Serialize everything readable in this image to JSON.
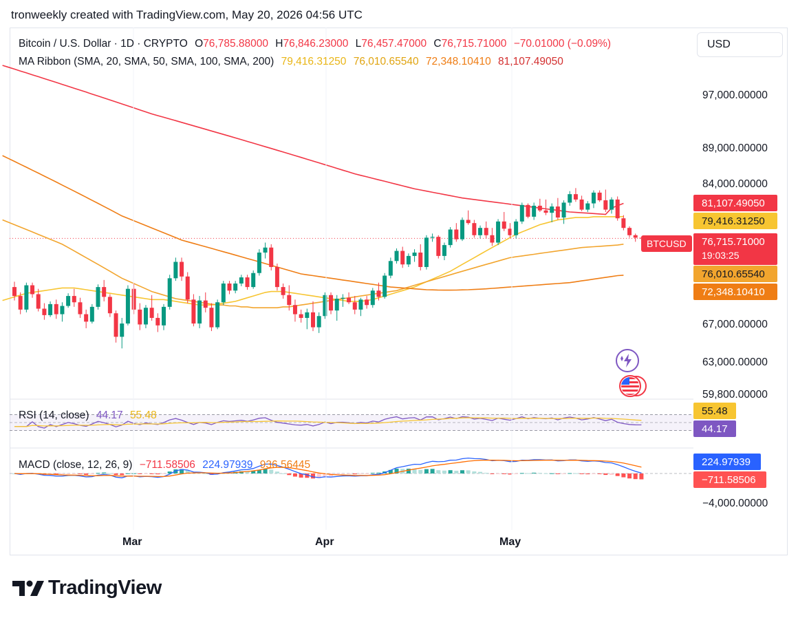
{
  "header": {
    "title": "tronweekly created with TradingView.com, May 20, 2026 04:56 UTC"
  },
  "currency": "USD",
  "legend": {
    "symbol": "Bitcoin / U.S. Dollar · 1D · CRYPTO",
    "open_label": "O",
    "open": "76,785.88000",
    "high_label": "H",
    "high": "76,846.23000",
    "low_label": "L",
    "low": "76,457.47000",
    "close_label": "C",
    "close": "76,715.71000",
    "change": "−70.01000 (−0.09%)",
    "ma_title": "MA Ribbon (SMA, 20, SMA, 50, SMA, 100, SMA, 200)",
    "ma20": "79,416.31250",
    "ma50": "76,010.65540",
    "ma100": "72,348.10410",
    "ma200": "81,107.49050"
  },
  "price_axis": [
    "97,000.00000",
    "89,000.00000",
    "84,000.00000",
    "67,000.00000",
    "63,000.00000",
    "59,800.00000"
  ],
  "price_tags": {
    "ma200": "81,107.49050",
    "ma20": "79,416.31250",
    "last": "76,715.71000",
    "countdown": "19:03:25",
    "ma50": "76,010.65540",
    "ma100": "72,348.10410",
    "symbol": "BTCUSD"
  },
  "rsi": {
    "title": "RSI (14, close)",
    "value": "44.17",
    "ma": "55.48"
  },
  "macd": {
    "title": "MACD (close, 12, 26, 9)",
    "histogram": "−711.58506",
    "macd": "224.97939",
    "signal": "936.56445",
    "axis_label": "−4,000.00000"
  },
  "time_axis": [
    "Mar",
    "Apr",
    "May"
  ],
  "brand": {
    "name": "TradingView"
  },
  "colors": {
    "up": "#089981",
    "down": "#f23645",
    "ma20": "#f7c531",
    "ma50": "#f2a52e",
    "ma100": "#ef7d14",
    "ma200": "#f23645",
    "rsi": "#7e57c2",
    "macd": "#2962ff",
    "signal": "#ff6d00"
  },
  "chart_data": {
    "type": "candlestick",
    "title": "Bitcoin / U.S. Dollar · 1D · CRYPTO",
    "xlabel": "",
    "ylabel": "",
    "x_ticks": [
      "Mar",
      "Apr",
      "May"
    ],
    "ylim": [
      59800,
      101000
    ],
    "log_scale": true,
    "grid": false,
    "legend": "top-left",
    "candles": [
      [
        71000,
        71600,
        69500,
        70000
      ],
      [
        70000,
        70400,
        68000,
        68500
      ],
      [
        68500,
        71500,
        68200,
        71200
      ],
      [
        71200,
        71500,
        69800,
        70200
      ],
      [
        70200,
        70800,
        68300,
        68600
      ],
      [
        68600,
        69200,
        67400,
        67900
      ],
      [
        67900,
        69400,
        67700,
        69100
      ],
      [
        69100,
        69600,
        67500,
        68000
      ],
      [
        68000,
        69300,
        67200,
        68900
      ],
      [
        68900,
        70300,
        68700,
        70000
      ],
      [
        70000,
        70800,
        68800,
        69300
      ],
      [
        69300,
        69800,
        67600,
        68000
      ],
      [
        68000,
        68500,
        66500,
        67200
      ],
      [
        67200,
        69100,
        67000,
        68800
      ],
      [
        68800,
        71300,
        68500,
        71000
      ],
      [
        71000,
        71800,
        69400,
        69900
      ],
      [
        69900,
        70200,
        67700,
        68100
      ],
      [
        68100,
        68400,
        65000,
        65600
      ],
      [
        65600,
        67600,
        64400,
        67000
      ],
      [
        67000,
        71200,
        66800,
        70800
      ],
      [
        70800,
        71400,
        68000,
        68500
      ],
      [
        68500,
        69200,
        66300,
        66900
      ],
      [
        66900,
        69000,
        66500,
        68700
      ],
      [
        68700,
        70100,
        67300,
        67600
      ],
      [
        67600,
        68100,
        66100,
        66800
      ],
      [
        66800,
        69100,
        66300,
        68800
      ],
      [
        68800,
        72400,
        68500,
        72000
      ],
      [
        72000,
        74400,
        71700,
        73900
      ],
      [
        73900,
        74400,
        71700,
        72200
      ],
      [
        72200,
        72700,
        69200,
        69600
      ],
      [
        69600,
        70200,
        66700,
        67000
      ],
      [
        67000,
        70000,
        66500,
        69500
      ],
      [
        69500,
        70400,
        68200,
        68700
      ],
      [
        68700,
        69200,
        66200,
        66600
      ],
      [
        66600,
        69600,
        66400,
        69300
      ],
      [
        69300,
        71700,
        69000,
        71400
      ],
      [
        71400,
        71700,
        70200,
        70600
      ],
      [
        70600,
        71700,
        70300,
        71400
      ],
      [
        71400,
        72400,
        71100,
        72100
      ],
      [
        72100,
        72400,
        70700,
        71000
      ],
      [
        71000,
        72900,
        70800,
        72600
      ],
      [
        72600,
        75400,
        72300,
        75000
      ],
      [
        75000,
        76200,
        74300,
        75600
      ],
      [
        75600,
        76000,
        72900,
        73300
      ],
      [
        73300,
        73700,
        70600,
        71000
      ],
      [
        71000,
        71400,
        69700,
        70100
      ],
      [
        70100,
        71200,
        68400,
        69000
      ],
      [
        69000,
        69600,
        67200,
        68000
      ],
      [
        68000,
        68500,
        67100,
        67600
      ],
      [
        67600,
        68600,
        66400,
        68200
      ],
      [
        68200,
        69400,
        66200,
        66600
      ],
      [
        66600,
        68200,
        66000,
        67800
      ],
      [
        67800,
        70400,
        67500,
        70100
      ],
      [
        70100,
        70400,
        68000,
        68400
      ],
      [
        68400,
        70100,
        67300,
        69700
      ],
      [
        69700,
        70200,
        68800,
        69800
      ],
      [
        69800,
        70400,
        69100,
        69300
      ],
      [
        69300,
        70000,
        68000,
        68500
      ],
      [
        68500,
        69800,
        67800,
        69600
      ],
      [
        69600,
        70000,
        68600,
        69000
      ],
      [
        69000,
        70900,
        68700,
        70600
      ],
      [
        70600,
        71500,
        69500,
        69900
      ],
      [
        69900,
        72600,
        69700,
        72300
      ],
      [
        72300,
        74400,
        72000,
        74000
      ],
      [
        74000,
        75500,
        73700,
        75200
      ],
      [
        75200,
        75700,
        73200,
        73600
      ],
      [
        73600,
        74900,
        73300,
        74600
      ],
      [
        74600,
        75400,
        73900,
        75000
      ],
      [
        75000,
        76000,
        72900,
        73300
      ],
      [
        73300,
        77100,
        73000,
        76800
      ],
      [
        76800,
        77300,
        76300,
        76900
      ],
      [
        76900,
        77100,
        74300,
        74600
      ],
      [
        74600,
        76200,
        74100,
        75900
      ],
      [
        75900,
        78100,
        75600,
        77800
      ],
      [
        77800,
        78600,
        76300,
        76600
      ],
      [
        76600,
        79300,
        76400,
        79000
      ],
      [
        79000,
        80200,
        78400,
        78600
      ],
      [
        78600,
        79000,
        76800,
        77100
      ],
      [
        77100,
        78300,
        76700,
        78000
      ],
      [
        78000,
        78800,
        76700,
        77100
      ],
      [
        77100,
        78000,
        75800,
        76200
      ],
      [
        76200,
        79100,
        75900,
        78800
      ],
      [
        78800,
        80000,
        77600,
        77900
      ],
      [
        77900,
        78600,
        76800,
        77100
      ],
      [
        77100,
        79100,
        76700,
        78800
      ],
      [
        78800,
        81200,
        78500,
        80900
      ],
      [
        80900,
        81100,
        79200,
        79400
      ],
      [
        79400,
        81200,
        79000,
        80800
      ],
      [
        80800,
        81700,
        80000,
        80200
      ],
      [
        80200,
        81600,
        79600,
        79900
      ],
      [
        79900,
        81100,
        78700,
        80700
      ],
      [
        80700,
        81800,
        79000,
        79300
      ],
      [
        79300,
        81500,
        78500,
        81200
      ],
      [
        81200,
        82700,
        80800,
        82300
      ],
      [
        82300,
        83100,
        81300,
        81600
      ],
      [
        81600,
        82100,
        80100,
        80300
      ],
      [
        80300,
        81400,
        80000,
        81100
      ],
      [
        81100,
        82800,
        80500,
        82500
      ],
      [
        82500,
        82800,
        81300,
        81500
      ],
      [
        81500,
        82900,
        80000,
        80300
      ],
      [
        80300,
        81900,
        79800,
        81600
      ],
      [
        81600,
        82000,
        78900,
        79200
      ],
      [
        79200,
        79600,
        77700,
        78000
      ],
      [
        78000,
        78200,
        76800,
        77100
      ],
      [
        77100,
        77300,
        76300,
        76800
      ],
      [
        76786,
        76846,
        76457,
        76716
      ]
    ],
    "series": [
      {
        "name": "SMA 20",
        "values": [
          69500,
          69700,
          69900,
          70100,
          70300,
          70400,
          70500,
          70600,
          70700,
          70800,
          70900,
          70900,
          70900,
          70800,
          70700,
          70600,
          70500,
          70400,
          70300,
          70200,
          70100,
          70000,
          69900,
          69800,
          69700,
          69600,
          69600,
          69600,
          69500,
          69400,
          69300,
          69200,
          69100,
          69000,
          69000,
          69000,
          69100,
          69200,
          69300,
          69400,
          69600,
          69800,
          70000,
          70200,
          70400,
          70500,
          70500,
          70500,
          70400,
          70300,
          70200,
          70100,
          70000,
          69900,
          69800,
          69700,
          69600,
          69500,
          69400,
          69400,
          69400,
          69500,
          69600,
          69800,
          70000,
          70200,
          70400,
          70600,
          70800,
          71000,
          71300,
          71600,
          71900,
          72200,
          72500,
          72800,
          73200,
          73600,
          74000,
          74400,
          74800,
          75200,
          75600,
          76000,
          76400,
          76800,
          77200,
          77500,
          77800,
          78100,
          78400,
          78600,
          78800,
          79000,
          79100,
          79200,
          79300,
          79300,
          79300,
          79400,
          79400,
          79400,
          79400,
          79400,
          79416
        ]
      },
      {
        "name": "SMA 50",
        "values": [
          79000,
          78700,
          78400,
          78100,
          77800,
          77500,
          77200,
          76900,
          76600,
          76300,
          76000,
          75600,
          75200,
          74800,
          74400,
          74000,
          73600,
          73200,
          72800,
          72400,
          72000,
          71700,
          71400,
          71100,
          70800,
          70500,
          70300,
          70100,
          69900,
          69700,
          69600,
          69500,
          69400,
          69300,
          69200,
          69100,
          69000,
          69000,
          68900,
          68900,
          68800,
          68800,
          68700,
          68700,
          68700,
          68700,
          68700,
          68800,
          68800,
          68900,
          69000,
          69100,
          69200,
          69300,
          69400,
          69500,
          69600,
          69700,
          69800,
          69900,
          70000,
          70100,
          70200,
          70300,
          70400,
          70500,
          70600,
          70800,
          71000,
          71200,
          71400,
          71600,
          71800,
          72000,
          72200,
          72400,
          72600,
          72800,
          73000,
          73200,
          73400,
          73600,
          73800,
          74000,
          74200,
          74400,
          74500,
          74600,
          74700,
          74800,
          74900,
          75000,
          75100,
          75200,
          75300,
          75400,
          75500,
          75600,
          75650,
          75700,
          75750,
          75800,
          75850,
          75900,
          76010
        ]
      },
      {
        "name": "SMA 100",
        "values": [
          87500,
          87100,
          86700,
          86300,
          85900,
          85500,
          85100,
          84700,
          84300,
          83900,
          83500,
          83100,
          82700,
          82300,
          81900,
          81500,
          81100,
          80700,
          80300,
          79900,
          79500,
          79200,
          78900,
          78600,
          78300,
          78000,
          77700,
          77400,
          77100,
          76800,
          76500,
          76300,
          76100,
          75900,
          75700,
          75500,
          75300,
          75100,
          74900,
          74700,
          74500,
          74300,
          74100,
          73900,
          73700,
          73500,
          73300,
          73100,
          72900,
          72700,
          72500,
          72400,
          72300,
          72200,
          72100,
          72000,
          71900,
          71800,
          71700,
          71600,
          71500,
          71400,
          71300,
          71200,
          71100,
          71000,
          70950,
          70900,
          70850,
          70800,
          70750,
          70700,
          70680,
          70660,
          70650,
          70650,
          70660,
          70680,
          70700,
          70730,
          70760,
          70800,
          70850,
          70900,
          70950,
          71000,
          71050,
          71100,
          71150,
          71200,
          71250,
          71300,
          71350,
          71400,
          71450,
          71500,
          71600,
          71700,
          71800,
          71900,
          72000,
          72100,
          72200,
          72300,
          72348
        ]
      },
      {
        "name": "SMA 200",
        "values": [
          101000,
          100700,
          100400,
          100100,
          99800,
          99500,
          99200,
          98900,
          98600,
          98300,
          98000,
          97700,
          97400,
          97100,
          96800,
          96500,
          96200,
          95900,
          95600,
          95300,
          95000,
          94700,
          94400,
          94100,
          93800,
          93500,
          93250,
          93000,
          92750,
          92500,
          92250,
          92000,
          91750,
          91500,
          91250,
          91000,
          90750,
          90500,
          90250,
          90000,
          89750,
          89500,
          89250,
          89000,
          88750,
          88500,
          88250,
          88000,
          87750,
          87500,
          87250,
          87000,
          86750,
          86500,
          86250,
          86000,
          85750,
          85500,
          85250,
          85000,
          84800,
          84600,
          84400,
          84200,
          84000,
          83800,
          83600,
          83400,
          83200,
          83000,
          82850,
          82700,
          82550,
          82400,
          82250,
          82100,
          81950,
          81800,
          81700,
          81600,
          81500,
          81400,
          81300,
          81200,
          81100,
          81000,
          80900,
          80800,
          80700,
          80600,
          80500,
          80400,
          80300,
          80200,
          80100,
          80000,
          79950,
          79900,
          79850,
          79800,
          79750,
          79700,
          80500,
          80800,
          81107
        ]
      }
    ],
    "rsi": {
      "ylim": [
        0,
        100
      ],
      "bands": [
        30,
        70
      ],
      "rsi_last": 44.17,
      "ma_last": 55.48
    },
    "macd": {
      "macd_last": 224.97939,
      "signal_last": 936.56445,
      "histogram_last": -711.58506
    }
  }
}
